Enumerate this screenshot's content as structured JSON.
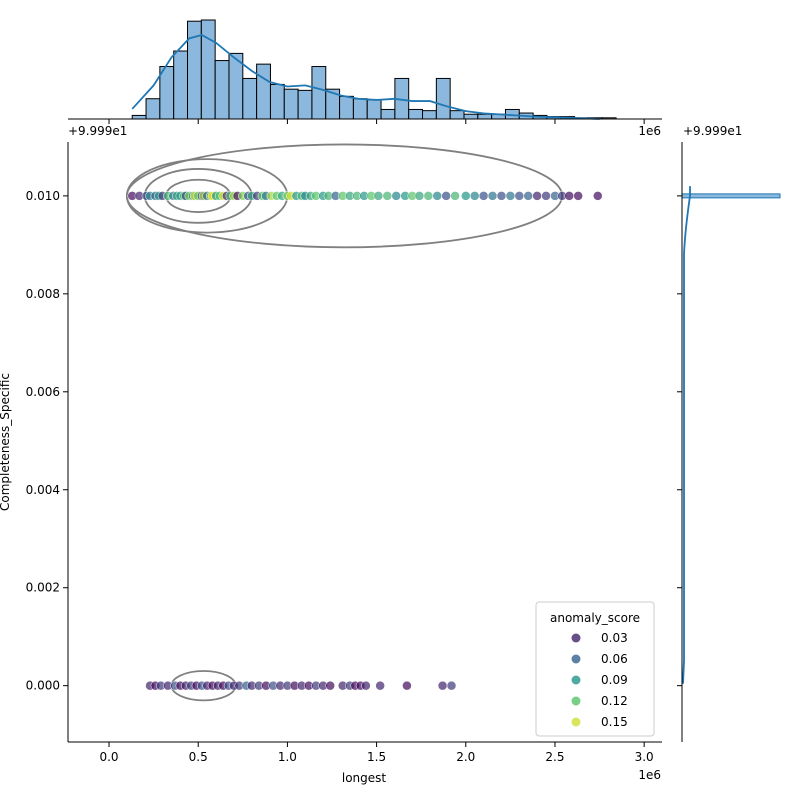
{
  "chart_data": {
    "type": "scatter",
    "subtype": "jointplot",
    "xlabel": "longest",
    "ylabel": "Completeness_Specific",
    "x_multiplier_label": "1e6",
    "y_offset_label": "+9.999e1",
    "top_offset_label": "+9.999e1",
    "top_multiplier_label": "1e6",
    "xlim": [
      -0.23,
      3.1
    ],
    "ylim": [
      -0.00115,
      0.0111
    ],
    "x_ticks": [
      0.0,
      0.5,
      1.0,
      1.5,
      2.0,
      2.5,
      3.0
    ],
    "x_tick_labels": [
      "0.0",
      "0.5",
      "1.0",
      "1.5",
      "2.0",
      "2.5",
      "3.0"
    ],
    "y_ticks": [
      0.0,
      0.002,
      0.004,
      0.006,
      0.008,
      0.01
    ],
    "y_tick_labels": [
      "0.000",
      "0.002",
      "0.004",
      "0.006",
      "0.008",
      "0.010"
    ],
    "grid": false,
    "colormap": [
      "#440154",
      "#3b528b",
      "#21918c",
      "#5ec962",
      "#fde725"
    ],
    "color_range": [
      0.015,
      0.16
    ],
    "legend": {
      "title": "anomaly_score",
      "placement": "lower right",
      "entries": [
        {
          "label": "0.03",
          "value": 0.03
        },
        {
          "label": "0.06",
          "value": 0.06
        },
        {
          "label": "0.09",
          "value": 0.09
        },
        {
          "label": "0.12",
          "value": 0.12
        },
        {
          "label": "0.15",
          "value": 0.15
        }
      ]
    },
    "series": [
      {
        "y": 0.01,
        "points": [
          [
            0.13,
            0.02
          ],
          [
            0.17,
            0.03
          ],
          [
            0.21,
            0.05
          ],
          [
            0.23,
            0.08
          ],
          [
            0.26,
            0.06
          ],
          [
            0.28,
            0.09
          ],
          [
            0.3,
            0.04
          ],
          [
            0.33,
            0.11
          ],
          [
            0.36,
            0.07
          ],
          [
            0.38,
            0.1
          ],
          [
            0.4,
            0.09
          ],
          [
            0.42,
            0.12
          ],
          [
            0.43,
            0.05
          ],
          [
            0.45,
            0.13
          ],
          [
            0.47,
            0.08
          ],
          [
            0.48,
            0.15
          ],
          [
            0.5,
            0.12
          ],
          [
            0.52,
            0.04
          ],
          [
            0.53,
            0.14
          ],
          [
            0.55,
            0.06
          ],
          [
            0.57,
            0.13
          ],
          [
            0.58,
            0.16
          ],
          [
            0.6,
            0.09
          ],
          [
            0.62,
            0.12
          ],
          [
            0.64,
            0.15
          ],
          [
            0.66,
            0.03
          ],
          [
            0.68,
            0.11
          ],
          [
            0.7,
            0.14
          ],
          [
            0.72,
            0.02
          ],
          [
            0.75,
            0.13
          ],
          [
            0.78,
            0.05
          ],
          [
            0.8,
            0.1
          ],
          [
            0.83,
            0.04
          ],
          [
            0.86,
            0.12
          ],
          [
            0.88,
            0.07
          ],
          [
            0.91,
            0.14
          ],
          [
            0.94,
            0.12
          ],
          [
            0.97,
            0.1
          ],
          [
            1.0,
            0.13
          ],
          [
            1.02,
            0.15
          ],
          [
            1.05,
            0.09
          ],
          [
            1.08,
            0.11
          ],
          [
            1.1,
            0.08
          ],
          [
            1.13,
            0.1
          ],
          [
            1.16,
            0.12
          ],
          [
            1.2,
            0.09
          ],
          [
            1.23,
            0.11
          ],
          [
            1.27,
            0.06
          ],
          [
            1.31,
            0.12
          ],
          [
            1.35,
            0.1
          ],
          [
            1.39,
            0.11
          ],
          [
            1.43,
            0.09
          ],
          [
            1.47,
            0.12
          ],
          [
            1.51,
            0.1
          ],
          [
            1.56,
            0.11
          ],
          [
            1.61,
            0.08
          ],
          [
            1.66,
            0.09
          ],
          [
            1.7,
            0.12
          ],
          [
            1.74,
            0.1
          ],
          [
            1.79,
            0.11
          ],
          [
            1.84,
            0.08
          ],
          [
            1.89,
            0.05
          ],
          [
            1.94,
            0.11
          ],
          [
            2.0,
            0.09
          ],
          [
            2.05,
            0.08
          ],
          [
            2.1,
            0.05
          ],
          [
            2.15,
            0.07
          ],
          [
            2.2,
            0.05
          ],
          [
            2.25,
            0.07
          ],
          [
            2.3,
            0.05
          ],
          [
            2.35,
            0.06
          ],
          [
            2.4,
            0.03
          ],
          [
            2.45,
            0.04
          ],
          [
            2.5,
            0.06
          ],
          [
            2.54,
            0.04
          ],
          [
            2.58,
            0.02
          ],
          [
            2.63,
            0.02
          ],
          [
            2.74,
            0.02
          ]
        ]
      },
      {
        "y": 0.0,
        "points": [
          [
            0.23,
            0.03
          ],
          [
            0.26,
            0.02
          ],
          [
            0.29,
            0.04
          ],
          [
            0.33,
            0.03
          ],
          [
            0.37,
            0.05
          ],
          [
            0.4,
            0.02
          ],
          [
            0.43,
            0.03
          ],
          [
            0.46,
            0.04
          ],
          [
            0.49,
            0.02
          ],
          [
            0.52,
            0.05
          ],
          [
            0.55,
            0.03
          ],
          [
            0.58,
            0.02
          ],
          [
            0.61,
            0.03
          ],
          [
            0.64,
            0.02
          ],
          [
            0.67,
            0.05
          ],
          [
            0.7,
            0.03
          ],
          [
            0.73,
            0.04
          ],
          [
            0.77,
            0.06
          ],
          [
            0.8,
            0.03
          ],
          [
            0.84,
            0.04
          ],
          [
            0.88,
            0.02
          ],
          [
            0.92,
            0.05
          ],
          [
            0.96,
            0.03
          ],
          [
            1.0,
            0.04
          ],
          [
            1.04,
            0.02
          ],
          [
            1.08,
            0.03
          ],
          [
            1.12,
            0.02
          ],
          [
            1.16,
            0.04
          ],
          [
            1.2,
            0.03
          ],
          [
            1.24,
            0.02
          ],
          [
            1.31,
            0.03
          ],
          [
            1.35,
            0.04
          ],
          [
            1.38,
            0.02
          ],
          [
            1.41,
            0.02
          ],
          [
            1.44,
            0.03
          ],
          [
            1.52,
            0.03
          ],
          [
            1.67,
            0.02
          ],
          [
            1.87,
            0.03
          ],
          [
            1.92,
            0.04
          ]
        ]
      }
    ],
    "marginal_x_hist": {
      "bin_edges_start": 0.13,
      "bin_width": 0.0775,
      "counts": [
        3,
        17,
        44,
        57,
        82,
        83,
        49,
        55,
        34,
        46,
        29,
        25,
        24,
        44,
        25,
        19,
        17,
        16,
        8,
        34,
        8,
        7,
        34,
        7,
        4,
        4,
        4,
        8,
        5,
        3,
        2,
        2,
        1,
        1,
        1
      ]
    },
    "marginal_x_kde": [
      [
        0.13,
        0.09
      ],
      [
        0.25,
        0.3
      ],
      [
        0.35,
        0.55
      ],
      [
        0.45,
        0.72
      ],
      [
        0.52,
        0.75
      ],
      [
        0.6,
        0.68
      ],
      [
        0.7,
        0.55
      ],
      [
        0.8,
        0.43
      ],
      [
        0.9,
        0.33
      ],
      [
        1.0,
        0.29
      ],
      [
        1.1,
        0.3
      ],
      [
        1.2,
        0.26
      ],
      [
        1.3,
        0.21
      ],
      [
        1.4,
        0.18
      ],
      [
        1.5,
        0.17
      ],
      [
        1.6,
        0.18
      ],
      [
        1.7,
        0.16
      ],
      [
        1.8,
        0.16
      ],
      [
        1.9,
        0.11
      ],
      [
        2.0,
        0.07
      ],
      [
        2.1,
        0.05
      ],
      [
        2.2,
        0.04
      ],
      [
        2.3,
        0.03
      ],
      [
        2.4,
        0.02
      ],
      [
        2.6,
        0.01
      ],
      [
        2.75,
        0.0
      ]
    ],
    "kde_contours": [
      {
        "cx": 1.32,
        "cy": 0.01,
        "rx": 1.22,
        "ry": 0.00105
      },
      {
        "cx": 0.55,
        "cy": 0.01,
        "rx": 0.45,
        "ry": 0.00075
      },
      {
        "cx": 0.5,
        "cy": 0.01,
        "rx": 0.3,
        "ry": 0.00055
      },
      {
        "cx": 0.5,
        "cy": 0.01,
        "rx": 0.18,
        "ry": 0.00033
      },
      {
        "cx": 0.53,
        "cy": 0.0,
        "rx": 0.18,
        "ry": 0.0003
      }
    ]
  }
}
